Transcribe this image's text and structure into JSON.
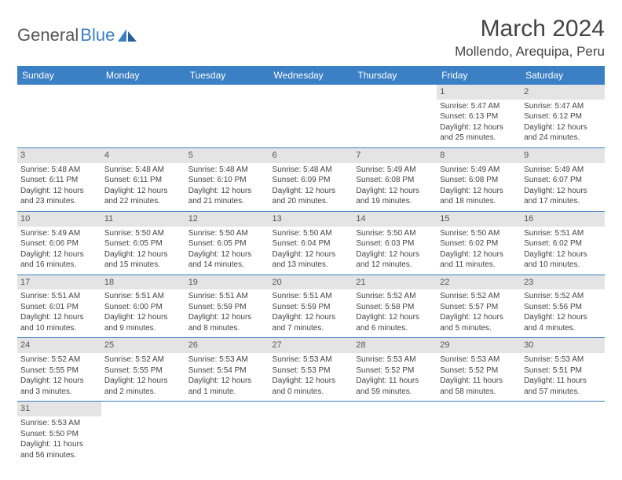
{
  "logo": {
    "text1": "General",
    "text2": "Blue"
  },
  "title": "March 2024",
  "location": "Mollendo, Arequipa, Peru",
  "colors": {
    "header_bg": "#3b7fc4",
    "header_fg": "#ffffff",
    "daynum_bg": "#e4e4e4",
    "rule": "#3b7fc4",
    "text": "#444444"
  },
  "dayNames": [
    "Sunday",
    "Monday",
    "Tuesday",
    "Wednesday",
    "Thursday",
    "Friday",
    "Saturday"
  ],
  "weeks": [
    [
      null,
      null,
      null,
      null,
      null,
      {
        "n": "1",
        "sr": "5:47 AM",
        "ss": "6:13 PM",
        "dl": "12 hours and 25 minutes."
      },
      {
        "n": "2",
        "sr": "5:47 AM",
        "ss": "6:12 PM",
        "dl": "12 hours and 24 minutes."
      }
    ],
    [
      {
        "n": "3",
        "sr": "5:48 AM",
        "ss": "6:11 PM",
        "dl": "12 hours and 23 minutes."
      },
      {
        "n": "4",
        "sr": "5:48 AM",
        "ss": "6:11 PM",
        "dl": "12 hours and 22 minutes."
      },
      {
        "n": "5",
        "sr": "5:48 AM",
        "ss": "6:10 PM",
        "dl": "12 hours and 21 minutes."
      },
      {
        "n": "6",
        "sr": "5:48 AM",
        "ss": "6:09 PM",
        "dl": "12 hours and 20 minutes."
      },
      {
        "n": "7",
        "sr": "5:49 AM",
        "ss": "6:08 PM",
        "dl": "12 hours and 19 minutes."
      },
      {
        "n": "8",
        "sr": "5:49 AM",
        "ss": "6:08 PM",
        "dl": "12 hours and 18 minutes."
      },
      {
        "n": "9",
        "sr": "5:49 AM",
        "ss": "6:07 PM",
        "dl": "12 hours and 17 minutes."
      }
    ],
    [
      {
        "n": "10",
        "sr": "5:49 AM",
        "ss": "6:06 PM",
        "dl": "12 hours and 16 minutes."
      },
      {
        "n": "11",
        "sr": "5:50 AM",
        "ss": "6:05 PM",
        "dl": "12 hours and 15 minutes."
      },
      {
        "n": "12",
        "sr": "5:50 AM",
        "ss": "6:05 PM",
        "dl": "12 hours and 14 minutes."
      },
      {
        "n": "13",
        "sr": "5:50 AM",
        "ss": "6:04 PM",
        "dl": "12 hours and 13 minutes."
      },
      {
        "n": "14",
        "sr": "5:50 AM",
        "ss": "6:03 PM",
        "dl": "12 hours and 12 minutes."
      },
      {
        "n": "15",
        "sr": "5:50 AM",
        "ss": "6:02 PM",
        "dl": "12 hours and 11 minutes."
      },
      {
        "n": "16",
        "sr": "5:51 AM",
        "ss": "6:02 PM",
        "dl": "12 hours and 10 minutes."
      }
    ],
    [
      {
        "n": "17",
        "sr": "5:51 AM",
        "ss": "6:01 PM",
        "dl": "12 hours and 10 minutes."
      },
      {
        "n": "18",
        "sr": "5:51 AM",
        "ss": "6:00 PM",
        "dl": "12 hours and 9 minutes."
      },
      {
        "n": "19",
        "sr": "5:51 AM",
        "ss": "5:59 PM",
        "dl": "12 hours and 8 minutes."
      },
      {
        "n": "20",
        "sr": "5:51 AM",
        "ss": "5:59 PM",
        "dl": "12 hours and 7 minutes."
      },
      {
        "n": "21",
        "sr": "5:52 AM",
        "ss": "5:58 PM",
        "dl": "12 hours and 6 minutes."
      },
      {
        "n": "22",
        "sr": "5:52 AM",
        "ss": "5:57 PM",
        "dl": "12 hours and 5 minutes."
      },
      {
        "n": "23",
        "sr": "5:52 AM",
        "ss": "5:56 PM",
        "dl": "12 hours and 4 minutes."
      }
    ],
    [
      {
        "n": "24",
        "sr": "5:52 AM",
        "ss": "5:55 PM",
        "dl": "12 hours and 3 minutes."
      },
      {
        "n": "25",
        "sr": "5:52 AM",
        "ss": "5:55 PM",
        "dl": "12 hours and 2 minutes."
      },
      {
        "n": "26",
        "sr": "5:53 AM",
        "ss": "5:54 PM",
        "dl": "12 hours and 1 minute."
      },
      {
        "n": "27",
        "sr": "5:53 AM",
        "ss": "5:53 PM",
        "dl": "12 hours and 0 minutes."
      },
      {
        "n": "28",
        "sr": "5:53 AM",
        "ss": "5:52 PM",
        "dl": "11 hours and 59 minutes."
      },
      {
        "n": "29",
        "sr": "5:53 AM",
        "ss": "5:52 PM",
        "dl": "11 hours and 58 minutes."
      },
      {
        "n": "30",
        "sr": "5:53 AM",
        "ss": "5:51 PM",
        "dl": "11 hours and 57 minutes."
      }
    ],
    [
      {
        "n": "31",
        "sr": "5:53 AM",
        "ss": "5:50 PM",
        "dl": "11 hours and 56 minutes."
      },
      null,
      null,
      null,
      null,
      null,
      null
    ]
  ],
  "labels": {
    "sunrise": "Sunrise:",
    "sunset": "Sunset:",
    "daylight": "Daylight:"
  }
}
